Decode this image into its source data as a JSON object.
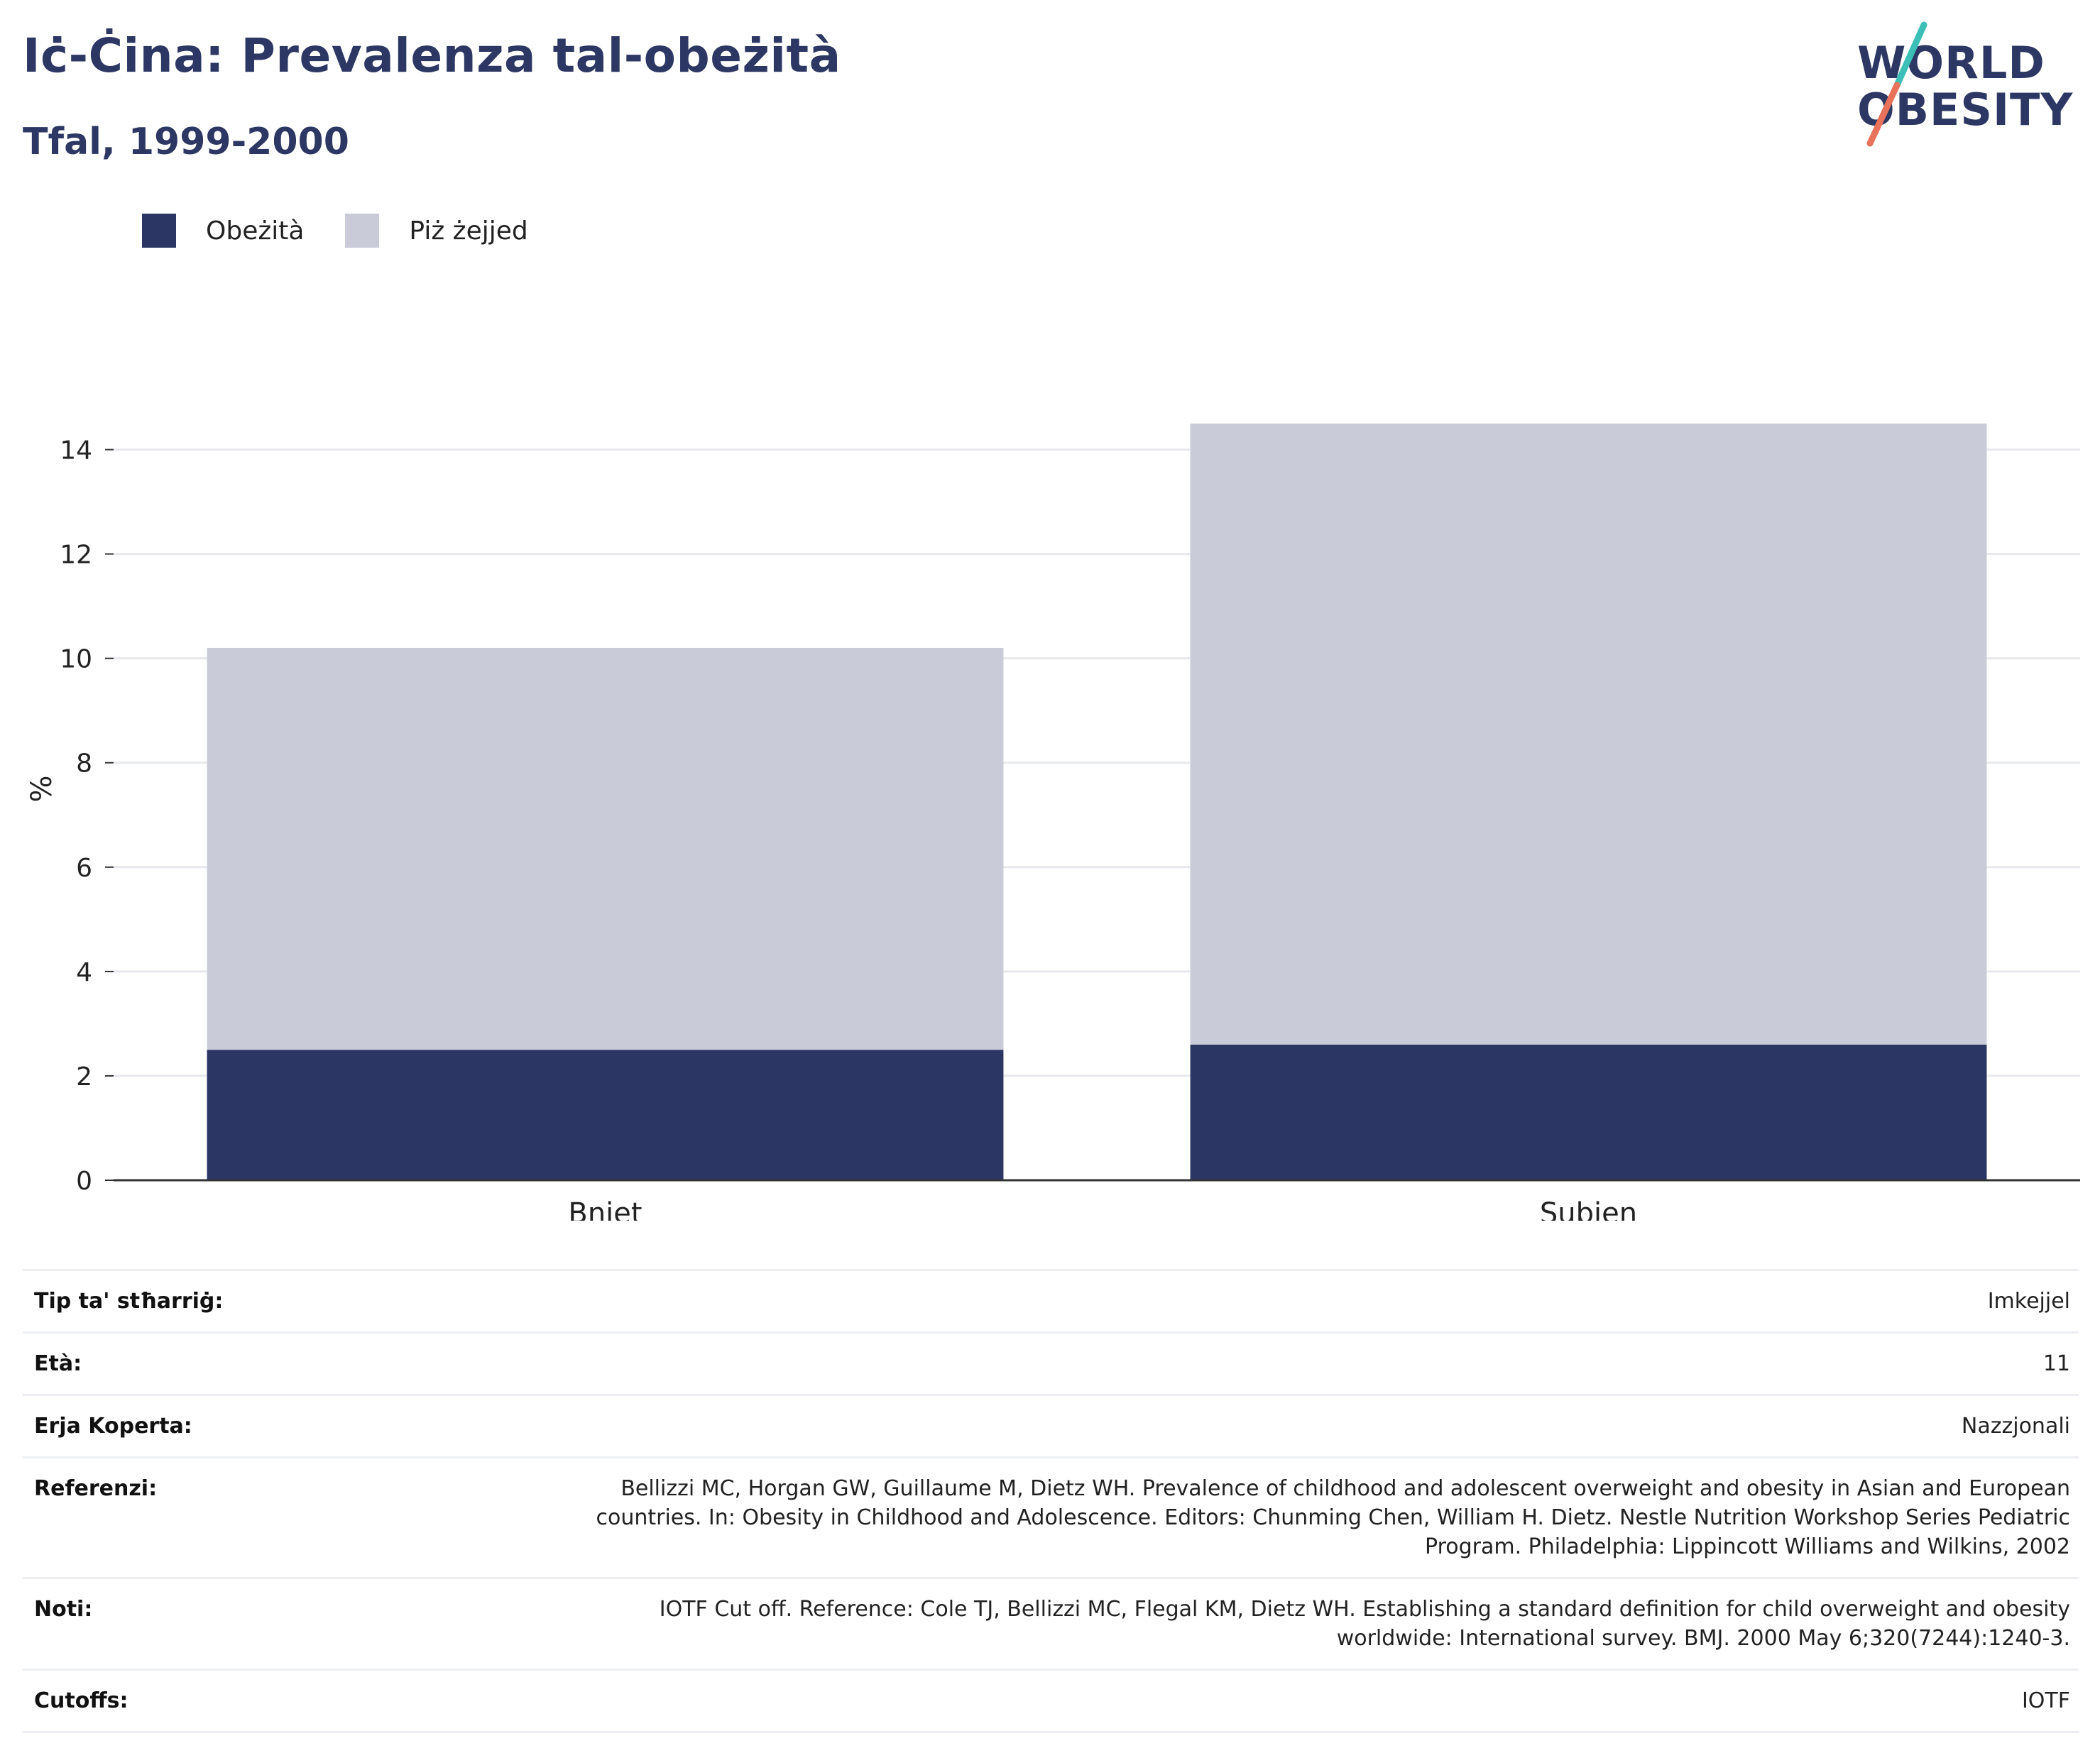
{
  "header": {
    "title": "Iċ-Ċina: Prevalenza tal-obeżità",
    "subtitle": "Tfal, 1999-2000"
  },
  "logo": {
    "line1": "WORLD",
    "line2": "OBESITY",
    "colors": {
      "text": "#2c3763",
      "slash_top": "#3bbfb6",
      "slash_bottom": "#e8735a"
    }
  },
  "legend": [
    {
      "label": "Obeżità",
      "color": "#2b3664"
    },
    {
      "label": "Piż żejjed",
      "color": "#c9ccd8"
    }
  ],
  "chart_data": {
    "type": "bar",
    "stacked": true,
    "categories": [
      "Bniet",
      "Subien"
    ],
    "series": [
      {
        "name": "Obeżità",
        "values": [
          2.5,
          2.6
        ],
        "color": "#2b3664"
      },
      {
        "name": "Piż żejjed",
        "values": [
          7.7,
          11.9
        ],
        "color": "#c9ccd8"
      }
    ],
    "title": "Iċ-Ċina: Prevalenza tal-obeżità",
    "subtitle": "Tfal, 1999-2000",
    "ylabel": "%",
    "xlabel": "",
    "ylim": [
      0,
      15
    ],
    "yticks": [
      0,
      2,
      4,
      6,
      8,
      10,
      12,
      14
    ],
    "grid": true,
    "legend_position": "top-left"
  },
  "info": [
    {
      "label": "Tip ta' stħarriġ:",
      "value": "Imkejjel"
    },
    {
      "label": "Età:",
      "value": "11"
    },
    {
      "label": "Erja Koperta:",
      "value": "Nazzjonali"
    },
    {
      "label": "Referenzi:",
      "value": "Bellizzi MC, Horgan GW, Guillaume M, Dietz WH. Prevalence of childhood and adolescent overweight and obesity in Asian and European countries. In: Obesity in Childhood and Adolescence. Editors: Chunming Chen, William H. Dietz. Nestle Nutrition Workshop Series Pediatric Program. Philadelphia: Lippincott Williams and Wilkins, 2002"
    },
    {
      "label": "Noti:",
      "value": "IOTF Cut off. Reference: Cole TJ, Bellizzi MC, Flegal KM, Dietz WH. Establishing a standard definition for child overweight and obesity worldwide: International survey. BMJ. 2000 May 6;320(7244):1240-3."
    },
    {
      "label": "Cutoffs:",
      "value": "IOTF"
    }
  ]
}
